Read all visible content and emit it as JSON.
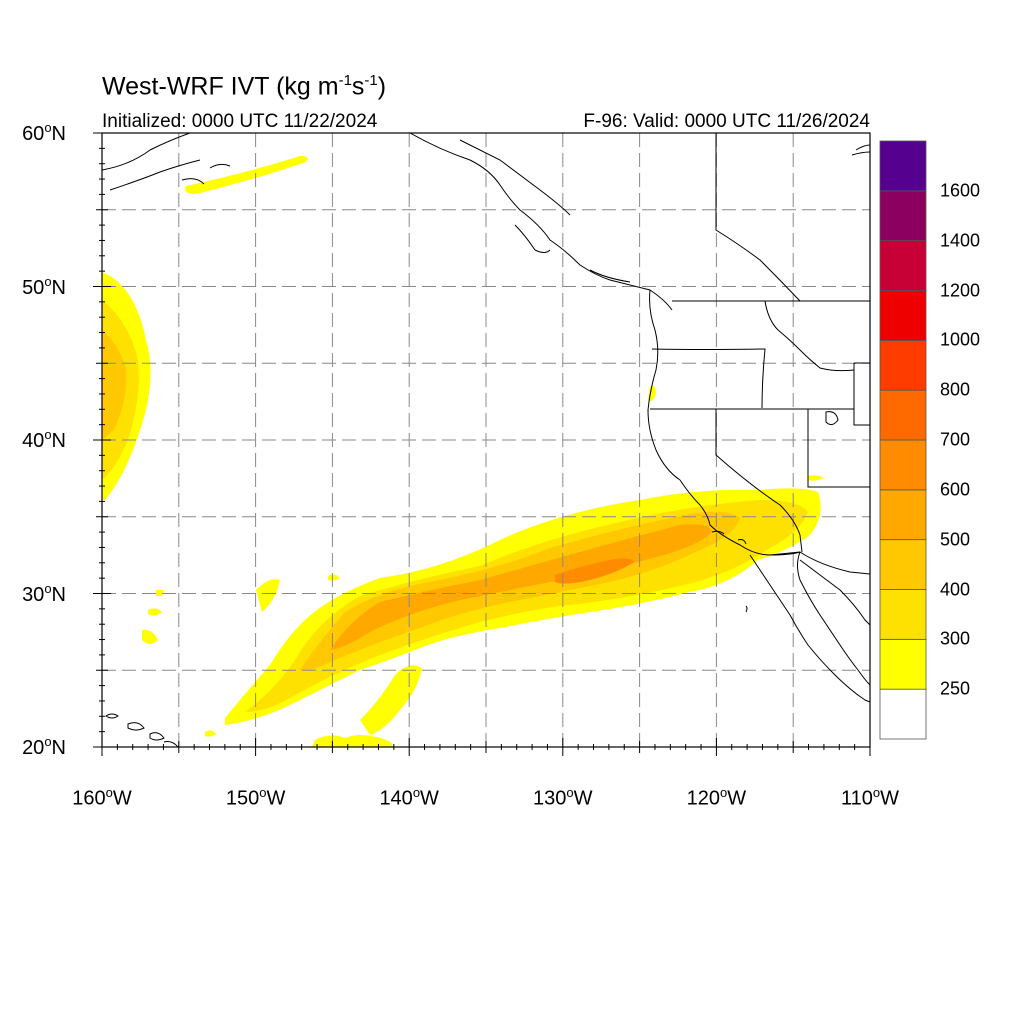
{
  "title": {
    "prefix": "West-WRF IVT (kg m",
    "exp1": "-1",
    "mid": "s",
    "exp2": "-1",
    "suffix": ")"
  },
  "initialized": "Initialized: 0000 UTC 11/22/2024",
  "valid": "F-96: Valid: 0000 UTC 11/26/2024",
  "degree_symbol": "o",
  "lat_ticks": [
    {
      "value": 60,
      "label": "60",
      "hemi": "N"
    },
    {
      "value": 50,
      "label": "50",
      "hemi": "N"
    },
    {
      "value": 40,
      "label": "40",
      "hemi": "N"
    },
    {
      "value": 30,
      "label": "30",
      "hemi": "N"
    },
    {
      "value": 20,
      "label": "20",
      "hemi": "N"
    }
  ],
  "lon_ticks": [
    {
      "value": -160,
      "label": "160",
      "hemi": "W"
    },
    {
      "value": -150,
      "label": "150",
      "hemi": "W"
    },
    {
      "value": -140,
      "label": "140",
      "hemi": "W"
    },
    {
      "value": -130,
      "label": "130",
      "hemi": "W"
    },
    {
      "value": -120,
      "label": "120",
      "hemi": "W"
    },
    {
      "value": -110,
      "label": "110",
      "hemi": "W"
    }
  ],
  "map_extent": {
    "lon_min": -160,
    "lon_max": -110,
    "lat_min": 20,
    "lat_max": 60
  },
  "grid_spacing_deg": 5,
  "colorbar": {
    "labels": [
      "250",
      "300",
      "400",
      "500",
      "600",
      "700",
      "800",
      "1000",
      "1200",
      "1400",
      "1600"
    ],
    "colors": [
      "#ffffff",
      "#ffff00",
      "#ffe100",
      "#ffc800",
      "#ffa800",
      "#ff8c00",
      "#ff6a00",
      "#ff3c00",
      "#ee0000",
      "#c70035",
      "#8c005f",
      "#55008f"
    ]
  },
  "ivt_colors": {
    "c250": "#ffff00",
    "c300": "#ffe100",
    "c400": "#ffc800",
    "c500": "#ffa800",
    "c600": "#ff8c00"
  }
}
